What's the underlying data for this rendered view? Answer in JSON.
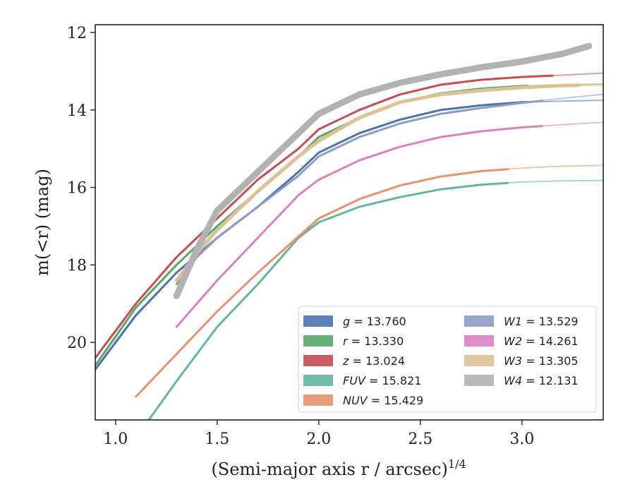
{
  "chart_data": {
    "type": "line",
    "xlabel": "(Semi-major axis r / arcsec)",
    "xlabel_sup": "1/4",
    "ylabel": "m(<r) (mag)",
    "xlim": [
      0.9,
      3.4
    ],
    "ylim": [
      22,
      11.8
    ],
    "y_inverted": true,
    "grid": false,
    "legend_position": "lower-right",
    "xticks": [
      1.0,
      1.5,
      2.0,
      2.5,
      3.0
    ],
    "xtick_labels": [
      "1.0",
      "1.5",
      "2.0",
      "2.5",
      "3.0"
    ],
    "yticks": [
      12,
      14,
      16,
      18,
      20
    ],
    "ytick_labels": [
      "12",
      "14",
      "16",
      "18",
      "20"
    ],
    "series": [
      {
        "band": "g",
        "value": "13.760",
        "color": "#4c72b0",
        "width": 3,
        "x_solid_end": 3.03,
        "points": [
          [
            0.9,
            20.7
          ],
          [
            1.1,
            19.3
          ],
          [
            1.3,
            18.2
          ],
          [
            1.5,
            17.3
          ],
          [
            1.7,
            16.5
          ],
          [
            1.9,
            15.6
          ],
          [
            2.0,
            15.1
          ],
          [
            2.2,
            14.6
          ],
          [
            2.4,
            14.25
          ],
          [
            2.6,
            14.0
          ],
          [
            2.8,
            13.88
          ],
          [
            3.0,
            13.8
          ],
          [
            3.2,
            13.77
          ],
          [
            3.4,
            13.75
          ]
        ]
      },
      {
        "band": "r",
        "value": "13.330",
        "color": "#55a868",
        "width": 3,
        "x_solid_end": 3.03,
        "points": [
          [
            0.9,
            20.6
          ],
          [
            1.1,
            19.1
          ],
          [
            1.3,
            18.0
          ],
          [
            1.5,
            17.0
          ],
          [
            1.7,
            16.1
          ],
          [
            1.9,
            15.2
          ],
          [
            2.0,
            14.7
          ],
          [
            2.2,
            14.2
          ],
          [
            2.4,
            13.8
          ],
          [
            2.6,
            13.57
          ],
          [
            2.8,
            13.45
          ],
          [
            3.0,
            13.38
          ],
          [
            3.2,
            13.35
          ],
          [
            3.4,
            13.33
          ]
        ]
      },
      {
        "band": "z",
        "value": "13.024",
        "color": "#c44e52",
        "width": 3,
        "x_solid_end": 3.15,
        "points": [
          [
            0.9,
            20.4
          ],
          [
            1.1,
            19.0
          ],
          [
            1.3,
            17.8
          ],
          [
            1.5,
            16.8
          ],
          [
            1.7,
            15.8
          ],
          [
            1.9,
            15.0
          ],
          [
            2.0,
            14.5
          ],
          [
            2.2,
            14.0
          ],
          [
            2.4,
            13.6
          ],
          [
            2.6,
            13.35
          ],
          [
            2.8,
            13.22
          ],
          [
            3.0,
            13.15
          ],
          [
            3.2,
            13.1
          ],
          [
            3.4,
            13.05
          ]
        ]
      },
      {
        "band": "FUV",
        "value": "15.821",
        "color": "#64b5a0",
        "width": 3,
        "x_solid_end": 2.93,
        "points": [
          [
            1.15,
            22.1
          ],
          [
            1.3,
            21.0
          ],
          [
            1.5,
            19.6
          ],
          [
            1.7,
            18.5
          ],
          [
            1.8,
            17.9
          ],
          [
            1.9,
            17.3
          ],
          [
            2.0,
            16.9
          ],
          [
            2.2,
            16.5
          ],
          [
            2.4,
            16.25
          ],
          [
            2.6,
            16.05
          ],
          [
            2.8,
            15.93
          ],
          [
            3.0,
            15.86
          ],
          [
            3.2,
            15.83
          ],
          [
            3.4,
            15.82
          ]
        ]
      },
      {
        "band": "NUV",
        "value": "15.429",
        "color": "#e8916e",
        "width": 3,
        "x_solid_end": 2.93,
        "points": [
          [
            1.1,
            21.4
          ],
          [
            1.3,
            20.3
          ],
          [
            1.5,
            19.2
          ],
          [
            1.7,
            18.2
          ],
          [
            1.85,
            17.5
          ],
          [
            2.0,
            16.8
          ],
          [
            2.2,
            16.3
          ],
          [
            2.4,
            15.95
          ],
          [
            2.6,
            15.72
          ],
          [
            2.8,
            15.58
          ],
          [
            3.0,
            15.5
          ],
          [
            3.2,
            15.45
          ],
          [
            3.4,
            15.43
          ]
        ]
      },
      {
        "band": "W1",
        "value": "13.529",
        "color": "#8b9dc3",
        "width": 3,
        "x_solid_end": 3.1,
        "points": [
          [
            1.3,
            18.5
          ],
          [
            1.4,
            17.8
          ],
          [
            1.5,
            17.3
          ],
          [
            1.7,
            16.5
          ],
          [
            1.9,
            15.7
          ],
          [
            2.0,
            15.2
          ],
          [
            2.2,
            14.7
          ],
          [
            2.4,
            14.35
          ],
          [
            2.6,
            14.1
          ],
          [
            2.8,
            13.95
          ],
          [
            3.0,
            13.82
          ],
          [
            3.2,
            13.7
          ],
          [
            3.4,
            13.6
          ]
        ]
      },
      {
        "band": "W2",
        "value": "14.261",
        "color": "#d981c0",
        "width": 3,
        "x_solid_end": 3.1,
        "points": [
          [
            1.3,
            19.6
          ],
          [
            1.4,
            19.0
          ],
          [
            1.5,
            18.4
          ],
          [
            1.7,
            17.3
          ],
          [
            1.9,
            16.2
          ],
          [
            2.0,
            15.8
          ],
          [
            2.2,
            15.3
          ],
          [
            2.4,
            14.95
          ],
          [
            2.6,
            14.7
          ],
          [
            2.8,
            14.55
          ],
          [
            3.0,
            14.45
          ],
          [
            3.2,
            14.38
          ],
          [
            3.4,
            14.32
          ]
        ]
      },
      {
        "band": "W3",
        "value": "13.305",
        "color": "#dcc195",
        "width": 5,
        "x_solid_end": 3.28,
        "points": [
          [
            1.3,
            18.4
          ],
          [
            1.4,
            17.7
          ],
          [
            1.5,
            17.1
          ],
          [
            1.7,
            16.1
          ],
          [
            1.9,
            15.2
          ],
          [
            2.0,
            14.8
          ],
          [
            2.2,
            14.2
          ],
          [
            2.4,
            13.8
          ],
          [
            2.6,
            13.6
          ],
          [
            2.8,
            13.5
          ],
          [
            3.0,
            13.42
          ],
          [
            3.2,
            13.37
          ],
          [
            3.3,
            13.36
          ],
          [
            3.4,
            13.35
          ]
        ]
      },
      {
        "band": "W4",
        "value": "12.131",
        "color": "#b2b2b2",
        "width": 9,
        "x_solid_end": 3.33,
        "points": [
          [
            1.3,
            18.8
          ],
          [
            1.4,
            17.6
          ],
          [
            1.5,
            16.6
          ],
          [
            1.7,
            15.6
          ],
          [
            1.9,
            14.6
          ],
          [
            2.0,
            14.1
          ],
          [
            2.2,
            13.6
          ],
          [
            2.4,
            13.3
          ],
          [
            2.6,
            13.08
          ],
          [
            2.8,
            12.9
          ],
          [
            3.0,
            12.75
          ],
          [
            3.1,
            12.65
          ],
          [
            3.2,
            12.55
          ],
          [
            3.33,
            12.35
          ]
        ]
      }
    ],
    "legend": [
      {
        "sym": "g",
        "val": "13.760",
        "color": "#4c72b0"
      },
      {
        "sym": "r",
        "val": "13.330",
        "color": "#55a868"
      },
      {
        "sym": "z",
        "val": "13.024",
        "color": "#c44e52"
      },
      {
        "sym": "FUV",
        "val": "15.821",
        "color": "#64b5a0"
      },
      {
        "sym": "NUV",
        "val": "15.429",
        "color": "#e8916e"
      },
      {
        "sym": "W1",
        "val": "13.529",
        "color": "#8b9dc3"
      },
      {
        "sym": "W2",
        "val": "14.261",
        "color": "#d981c0"
      },
      {
        "sym": "W3",
        "val": "13.305",
        "color": "#dcc195"
      },
      {
        "sym": "W4",
        "val": "12.131",
        "color": "#b2b2b2"
      }
    ]
  }
}
